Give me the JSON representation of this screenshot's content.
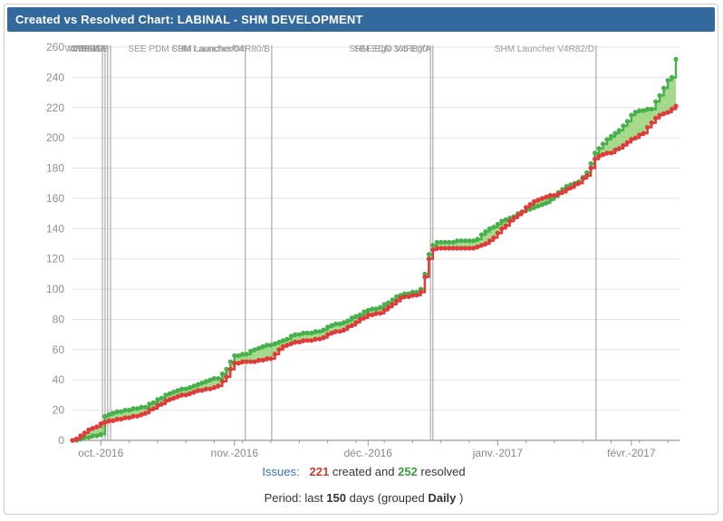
{
  "title_bar": {
    "title": "Created vs Resolved Chart: LABINAL - SHM DEVELOPMENT"
  },
  "colors": {
    "header_bg": "#336a9e",
    "created_line": "#e03a3a",
    "resolved_line": "#46b14b",
    "band_fill": "#8fd06e",
    "grid": "#e4e4e4",
    "axis": "#999999",
    "tick_label": "#8f8f8f",
    "annotation": "#999999"
  },
  "chart_data": {
    "type": "line",
    "title": "Created vs Resolved Chart: LABINAL - SHM DEVELOPMENT",
    "x_axis": {
      "range_days": [
        0,
        149
      ],
      "ticks": [
        {
          "day": 7,
          "label": "oct.-2016"
        },
        {
          "day": 40,
          "label": "nov.-2016"
        },
        {
          "day": 73,
          "label": "déc.-2016"
        },
        {
          "day": 105,
          "label": "janv.-2017"
        },
        {
          "day": 138,
          "label": "févr.-2017"
        }
      ]
    },
    "y_axis": {
      "min": 0,
      "max": 260,
      "step": 20
    },
    "grid": "horizontal",
    "legend": "none",
    "series": [
      {
        "name": "created",
        "color": "#e03a3a",
        "final_value": 221
      },
      {
        "name": "resolved",
        "color": "#46b14b",
        "final_value": 252
      }
    ],
    "keyframes_day_created_resolved": [
      [
        0,
        0,
        0
      ],
      [
        1,
        1,
        0
      ],
      [
        2,
        3,
        1
      ],
      [
        3,
        5,
        2
      ],
      [
        4,
        7,
        2
      ],
      [
        5,
        8,
        3
      ],
      [
        6,
        9,
        3
      ],
      [
        7,
        11,
        4
      ],
      [
        8,
        12,
        16
      ],
      [
        10,
        13,
        18
      ],
      [
        12,
        14,
        19
      ],
      [
        14,
        15,
        20
      ],
      [
        16,
        16,
        21
      ],
      [
        18,
        18,
        22
      ],
      [
        20,
        21,
        25
      ],
      [
        22,
        24,
        28
      ],
      [
        24,
        27,
        31
      ],
      [
        26,
        29,
        33
      ],
      [
        28,
        30,
        34
      ],
      [
        30,
        32,
        36
      ],
      [
        32,
        33,
        38
      ],
      [
        34,
        34,
        40
      ],
      [
        36,
        36,
        41
      ],
      [
        38,
        42,
        47
      ],
      [
        40,
        51,
        56
      ],
      [
        43,
        52,
        57
      ],
      [
        45,
        52,
        60
      ],
      [
        47,
        53,
        62
      ],
      [
        49,
        54,
        63
      ],
      [
        51,
        60,
        65
      ],
      [
        53,
        63,
        67
      ],
      [
        55,
        65,
        70
      ],
      [
        58,
        66,
        71
      ],
      [
        61,
        67,
        72
      ],
      [
        64,
        71,
        76
      ],
      [
        67,
        73,
        78
      ],
      [
        70,
        78,
        82
      ],
      [
        73,
        83,
        86
      ],
      [
        76,
        84,
        88
      ],
      [
        79,
        90,
        93
      ],
      [
        81,
        94,
        96
      ],
      [
        83,
        95,
        97
      ],
      [
        85,
        96,
        98
      ],
      [
        86,
        98,
        100
      ],
      [
        87,
        108,
        110
      ],
      [
        88,
        120,
        123
      ],
      [
        89,
        126,
        129
      ],
      [
        90,
        127,
        131
      ],
      [
        93,
        127,
        131
      ],
      [
        96,
        127,
        132
      ],
      [
        99,
        127,
        132
      ],
      [
        100,
        128,
        133
      ],
      [
        102,
        130,
        138
      ],
      [
        104,
        134,
        141
      ],
      [
        105,
        137,
        143
      ],
      [
        107,
        142,
        146
      ],
      [
        109,
        147,
        148
      ],
      [
        111,
        151,
        151
      ],
      [
        113,
        156,
        153
      ],
      [
        115,
        159,
        155
      ],
      [
        117,
        161,
        157
      ],
      [
        119,
        162,
        161
      ],
      [
        121,
        164,
        166
      ],
      [
        123,
        167,
        169
      ],
      [
        125,
        170,
        171
      ],
      [
        127,
        175,
        177
      ],
      [
        128,
        180,
        183
      ],
      [
        129,
        186,
        190
      ],
      [
        131,
        189,
        196
      ],
      [
        133,
        190,
        201
      ],
      [
        135,
        193,
        205
      ],
      [
        137,
        197,
        211
      ],
      [
        138,
        199,
        215
      ],
      [
        139,
        200,
        217
      ],
      [
        141,
        203,
        218
      ],
      [
        143,
        210,
        219
      ],
      [
        145,
        215,
        228
      ],
      [
        147,
        217,
        238
      ],
      [
        148,
        219,
        240
      ],
      [
        149,
        221,
        252
      ]
    ],
    "annotations": [
      {
        "day": 7.4,
        "label": "V4R80/A"
      },
      {
        "day": 8.05,
        "label": "V4R80/B"
      },
      {
        "day": 8.7,
        "label": "V4R81/A"
      },
      {
        "day": 9.4,
        "label": "V4R81/B"
      },
      {
        "day": 42.7,
        "label": "SEE PDM C3M Launcher/04"
      },
      {
        "day": 49.2,
        "label": "SHM Launcher/04R80/B"
      },
      {
        "day": 88.4,
        "label": "SHM ECN 365 EgD"
      },
      {
        "day": 89.0,
        "label": "SEE EgD V4R80/A"
      },
      {
        "day": 129.3,
        "label": "SHM Launcher V4R82/D"
      }
    ]
  },
  "footer": {
    "issues_label": "Issues:",
    "created_count": "221",
    "created_text": " created and ",
    "resolved_count": "252",
    "resolved_text": " resolved",
    "period_prefix": "Period: last ",
    "period_days": "150",
    "period_mid": " days (grouped ",
    "period_group": "Daily",
    "period_suffix": ")"
  }
}
